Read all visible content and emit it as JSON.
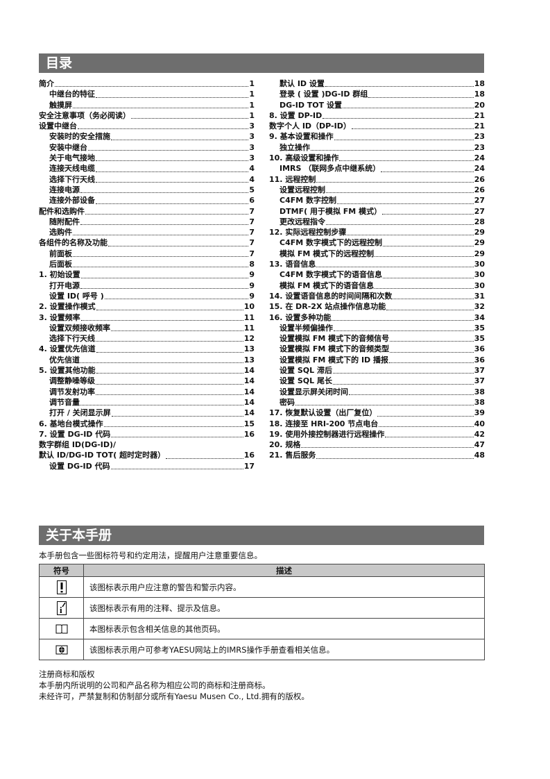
{
  "toc": {
    "title": "目录",
    "left": [
      {
        "t": "简介",
        "p": "1",
        "l": 0
      },
      {
        "t": "中继台的特征",
        "p": "1",
        "l": 1
      },
      {
        "t": "触摸屏",
        "p": "1",
        "l": 1
      },
      {
        "t": "安全注意事项（务必阅读）",
        "p": "1",
        "l": 0
      },
      {
        "t": "设置中继台",
        "p": "3",
        "l": 0
      },
      {
        "t": "安装时的安全措施",
        "p": "3",
        "l": 1
      },
      {
        "t": "安装中继台",
        "p": "3",
        "l": 1
      },
      {
        "t": "关于电气接地",
        "p": "3",
        "l": 1
      },
      {
        "t": "连接天线电缆",
        "p": "4",
        "l": 1
      },
      {
        "t": "选择下行天线",
        "p": "4",
        "l": 1
      },
      {
        "t": "连接电源",
        "p": "5",
        "l": 1
      },
      {
        "t": "连接外部设备",
        "p": "6",
        "l": 1
      },
      {
        "t": "配件和选购件",
        "p": "7",
        "l": 0
      },
      {
        "t": "随附配件",
        "p": "7",
        "l": 1
      },
      {
        "t": "选购件",
        "p": "7",
        "l": 1
      },
      {
        "t": "各组件的名称及功能",
        "p": "7",
        "l": 0
      },
      {
        "t": "前面板",
        "p": "7",
        "l": 1
      },
      {
        "t": "后面板",
        "p": "8",
        "l": 1
      },
      {
        "t": "1. 初始设置",
        "p": "9",
        "l": 0
      },
      {
        "t": "打开电源",
        "p": "9",
        "l": 1
      },
      {
        "t": "设置 ID( 呼号 )",
        "p": "9",
        "l": 1
      },
      {
        "t": "2. 设置操作模式",
        "p": "10",
        "l": 0
      },
      {
        "t": "3. 设置频率",
        "p": "11",
        "l": 0
      },
      {
        "t": "设置双频接收频率",
        "p": "11",
        "l": 1
      },
      {
        "t": "选择下行天线",
        "p": "12",
        "l": 1
      },
      {
        "t": "4. 设置优先信道",
        "p": "13",
        "l": 0
      },
      {
        "t": "优先信道",
        "p": "13",
        "l": 1
      },
      {
        "t": "5. 设置其他功能",
        "p": "14",
        "l": 0
      },
      {
        "t": "调整静噪等级",
        "p": "14",
        "l": 1
      },
      {
        "t": "调节发射功率",
        "p": "14",
        "l": 1
      },
      {
        "t": "调节音量",
        "p": "14",
        "l": 1
      },
      {
        "t": "打开 / 关闭显示屏",
        "p": "14",
        "l": 1
      },
      {
        "t": "6. 基地台模式操作",
        "p": "15",
        "l": 0
      },
      {
        "t": "7. 设置 DG-ID 代码",
        "p": "16",
        "l": 0
      },
      {
        "t": "数字群组 ID(DG-ID)/",
        "p": "",
        "l": 0
      },
      {
        "t": "默认 ID/DG-ID TOT( 超时定时器）",
        "p": "16",
        "l": 0
      },
      {
        "t": "设置 DG-ID 代码",
        "p": "17",
        "l": 1
      }
    ],
    "right": [
      {
        "t": "默认 ID 设置",
        "p": "18",
        "l": 1
      },
      {
        "t": "登录 ( 设置 )DG-ID 群组",
        "p": "18",
        "l": 1
      },
      {
        "t": "DG-ID TOT 设置",
        "p": "20",
        "l": 1
      },
      {
        "t": "8. 设置 DP-ID",
        "p": "21",
        "l": 0
      },
      {
        "t": "数字个人 ID（DP-ID）",
        "p": "21",
        "l": 0
      },
      {
        "t": "9. 基本设置和操作",
        "p": "23",
        "l": 0
      },
      {
        "t": "独立操作",
        "p": "23",
        "l": 1
      },
      {
        "t": "10. 高级设置和操作",
        "p": "24",
        "l": 0
      },
      {
        "t": "IMRS （联网多点中继系统）",
        "p": "24",
        "l": 1
      },
      {
        "t": "11. 远程控制",
        "p": "26",
        "l": 0
      },
      {
        "t": "设置远程控制",
        "p": "26",
        "l": 1
      },
      {
        "t": "C4FM 数字控制",
        "p": "27",
        "l": 1
      },
      {
        "t": "DTMF( 用于模拟 FM 模式）",
        "p": "27",
        "l": 1
      },
      {
        "t": "更改远程指令",
        "p": "28",
        "l": 1
      },
      {
        "t": "12. 实际远程控制步骤",
        "p": "29",
        "l": 0
      },
      {
        "t": "C4FM 数字模式下的远程控制",
        "p": "29",
        "l": 1
      },
      {
        "t": "模拟 FM 模式下的远程控制",
        "p": "29",
        "l": 1
      },
      {
        "t": "13. 语音信息",
        "p": "30",
        "l": 0
      },
      {
        "t": "C4FM 数字模式下的语音信息",
        "p": "30",
        "l": 1
      },
      {
        "t": "模拟 FM 模式下的语音信息",
        "p": "30",
        "l": 1
      },
      {
        "t": "14. 设置语音信息的时间间隔和次数",
        "p": "31",
        "l": 0
      },
      {
        "t": "15. 在 DR-2X 站点操作信息功能",
        "p": "32",
        "l": 0
      },
      {
        "t": "16. 设置多种功能",
        "p": "34",
        "l": 0
      },
      {
        "t": "设置半频偏操作",
        "p": "35",
        "l": 1
      },
      {
        "t": "设置模拟 FM 模式下的音频信号",
        "p": "35",
        "l": 1
      },
      {
        "t": "设置模拟 FM 模式下的音频类型",
        "p": "36",
        "l": 1
      },
      {
        "t": "设置模拟 FM 模式下的 ID 播报",
        "p": "36",
        "l": 1
      },
      {
        "t": "设置 SQL 滞后",
        "p": "37",
        "l": 1
      },
      {
        "t": "设置 SQL 尾长",
        "p": "37",
        "l": 1
      },
      {
        "t": "设置显示屏关闭时间",
        "p": "38",
        "l": 1
      },
      {
        "t": "密码",
        "p": "38",
        "l": 1
      },
      {
        "t": "17. 恢复默认设置（出厂复位）",
        "p": "39",
        "l": 0
      },
      {
        "t": "18. 连接至 HRI-200 节点电台",
        "p": "40",
        "l": 0
      },
      {
        "t": "19. 使用外接控制器进行远程操作",
        "p": "42",
        "l": 0
      },
      {
        "t": "20. 规格",
        "p": "47",
        "l": 0
      },
      {
        "t": "21. 售后服务",
        "p": "48",
        "l": 0
      }
    ]
  },
  "about": {
    "title": "关于本手册",
    "intro": "本手册包含一些图标符号和约定用法，提醒用户注意重要信息。",
    "table": {
      "headers": [
        "符号",
        "描述"
      ],
      "rows": [
        {
          "icon": "warning-exclamation-icon",
          "desc": "该图标表示用户应注意的警告和警示内容。"
        },
        {
          "icon": "info-note-icon",
          "desc": "该图标表示有用的注释、提示及信息。"
        },
        {
          "icon": "open-book-icon",
          "desc": "本图标表示包含相关信息的其他页码。"
        },
        {
          "icon": "imrs-manual-icon",
          "desc": "该图标表示用户可参考YAESU网站上的IMRS操作手册查看相关信息。"
        }
      ]
    },
    "footer": [
      "注册商标和版权",
      "本手册内所说明的公司和产品名称为相应公司的商标和注册商标。",
      "未经许可，严禁复制和仿制部分或所有Yaesu Musen Co., Ltd.拥有的版权。"
    ]
  },
  "colors": {
    "header_bar": "#6e6e6e",
    "table_header": "#c8c8c8"
  }
}
